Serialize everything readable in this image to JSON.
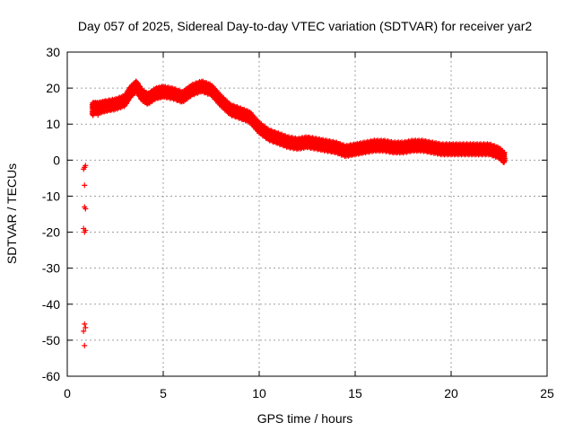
{
  "chart_data": {
    "type": "scatter",
    "title": "Day 057 of 2025, Sidereal Day-to-day VTEC variation (SDTVAR) for receiver yar2",
    "xlabel": "GPS time / hours",
    "ylabel": "SDTVAR / TECUs",
    "xlim": [
      0,
      25
    ],
    "ylim": [
      -60,
      30
    ],
    "xticks": [
      0,
      5,
      10,
      15,
      20,
      25
    ],
    "yticks": [
      -60,
      -50,
      -40,
      -30,
      -20,
      -10,
      0,
      10,
      20,
      30
    ],
    "grid": true,
    "marker": "+",
    "series": [
      {
        "name": "SDTVAR",
        "color": "#ff0000",
        "outliers": [
          {
            "x": 0.9,
            "y": -2
          },
          {
            "x": 0.85,
            "y": -2.5
          },
          {
            "x": 0.95,
            "y": -1.5
          },
          {
            "x": 0.9,
            "y": -7
          },
          {
            "x": 0.9,
            "y": -13
          },
          {
            "x": 0.95,
            "y": -13.5
          },
          {
            "x": 0.85,
            "y": -19
          },
          {
            "x": 0.9,
            "y": -20
          },
          {
            "x": 0.95,
            "y": -19.5
          },
          {
            "x": 0.9,
            "y": -45.5
          },
          {
            "x": 0.95,
            "y": -46.5
          },
          {
            "x": 0.85,
            "y": -47.5
          },
          {
            "x": 0.9,
            "y": -51.5
          }
        ],
        "trend": [
          {
            "x": 1.3,
            "y": 14.5
          },
          {
            "x": 1.6,
            "y": 14.5
          },
          {
            "x": 2.0,
            "y": 15
          },
          {
            "x": 2.5,
            "y": 15.5
          },
          {
            "x": 3.0,
            "y": 16.5
          },
          {
            "x": 3.3,
            "y": 19
          },
          {
            "x": 3.6,
            "y": 20.5
          },
          {
            "x": 3.9,
            "y": 18
          },
          {
            "x": 4.2,
            "y": 17
          },
          {
            "x": 4.6,
            "y": 18.5
          },
          {
            "x": 5.0,
            "y": 19
          },
          {
            "x": 5.5,
            "y": 18.5
          },
          {
            "x": 6.0,
            "y": 17.5
          },
          {
            "x": 6.5,
            "y": 19.5
          },
          {
            "x": 7.0,
            "y": 20.5
          },
          {
            "x": 7.5,
            "y": 19.5
          },
          {
            "x": 8.0,
            "y": 16.5
          },
          {
            "x": 8.5,
            "y": 14
          },
          {
            "x": 9.0,
            "y": 13
          },
          {
            "x": 9.5,
            "y": 12
          },
          {
            "x": 10.0,
            "y": 9
          },
          {
            "x": 10.5,
            "y": 7
          },
          {
            "x": 11.0,
            "y": 6
          },
          {
            "x": 11.5,
            "y": 5
          },
          {
            "x": 12.0,
            "y": 4.5
          },
          {
            "x": 12.5,
            "y": 5
          },
          {
            "x": 13.0,
            "y": 4.5
          },
          {
            "x": 13.5,
            "y": 4
          },
          {
            "x": 14.0,
            "y": 3.5
          },
          {
            "x": 14.5,
            "y": 2.5
          },
          {
            "x": 15.0,
            "y": 3
          },
          {
            "x": 15.5,
            "y": 3.5
          },
          {
            "x": 16.0,
            "y": 4
          },
          {
            "x": 16.5,
            "y": 4
          },
          {
            "x": 17.0,
            "y": 3.5
          },
          {
            "x": 17.5,
            "y": 3.5
          },
          {
            "x": 18.0,
            "y": 4
          },
          {
            "x": 18.5,
            "y": 4
          },
          {
            "x": 19.0,
            "y": 3.5
          },
          {
            "x": 19.5,
            "y": 3
          },
          {
            "x": 20.0,
            "y": 3
          },
          {
            "x": 20.5,
            "y": 3
          },
          {
            "x": 21.0,
            "y": 3
          },
          {
            "x": 21.5,
            "y": 3
          },
          {
            "x": 22.0,
            "y": 3
          },
          {
            "x": 22.5,
            "y": 2
          },
          {
            "x": 22.8,
            "y": 0.5
          }
        ],
        "band_half_width": 1.2
      }
    ]
  }
}
